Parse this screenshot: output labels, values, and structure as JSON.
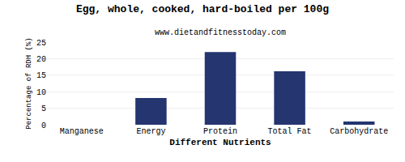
{
  "chart_data": {
    "type": "bar",
    "title": "Egg, whole, cooked, hard-boiled per 100g",
    "subtitle": "www.dietandfitnesstoday.com",
    "xlabel": "Different Nutrients",
    "ylabel": "Percentage of RDH (%)",
    "categories": [
      "Manganese",
      "Energy",
      "Protein",
      "Total Fat",
      "Carbohydrate"
    ],
    "values": [
      0.0,
      8.1,
      22.0,
      16.2,
      1.0
    ],
    "color": "#253570",
    "ylim": [
      0,
      25
    ],
    "yticks": [
      0,
      5,
      10,
      15,
      20,
      25
    ],
    "grid": true
  }
}
